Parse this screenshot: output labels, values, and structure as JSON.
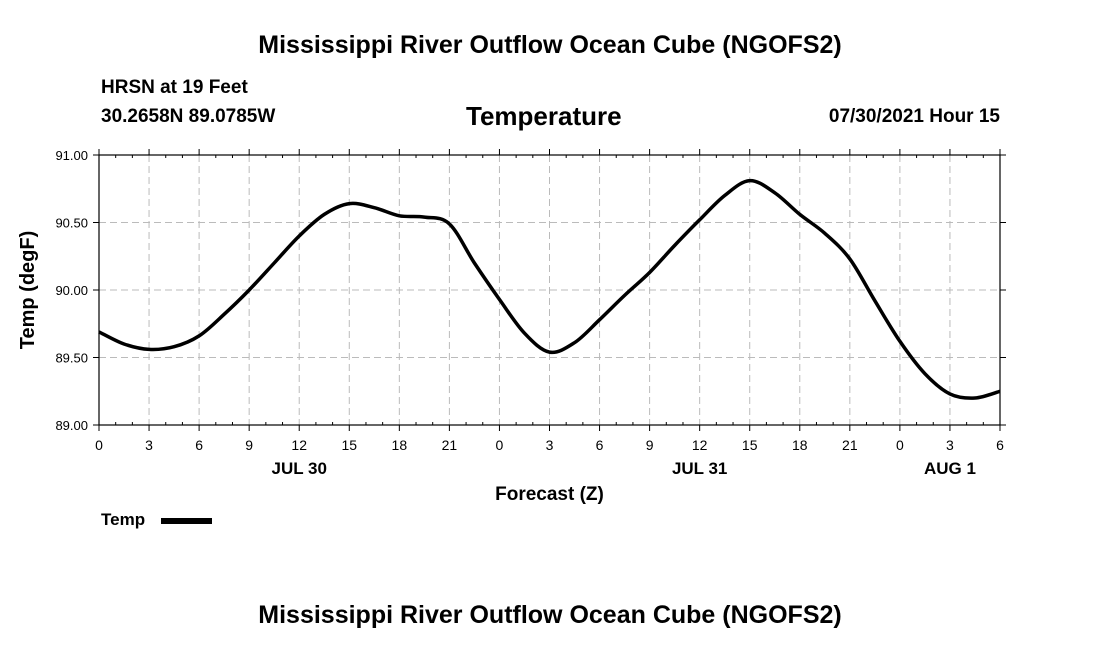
{
  "page": {
    "top_title": "Mississippi River Outflow Ocean Cube (NGOFS2)",
    "bottom_title": "Mississippi River Outflow Ocean Cube (NGOFS2)",
    "station": "HRSN at 19 Feet",
    "coords": "30.2658N  89.0785W",
    "date_label": "07/30/2021 Hour 15"
  },
  "chart_data": {
    "type": "line",
    "title": "Temperature",
    "xlabel": "Forecast (Z)",
    "ylabel": "Temp (degF)",
    "ylim": [
      89.0,
      91.0
    ],
    "xlim": [
      0,
      54
    ],
    "y_ticks": [
      "89.00",
      "89.50",
      "90.00",
      "90.50",
      "91.00"
    ],
    "x_ticks": [
      "0",
      "3",
      "6",
      "9",
      "12",
      "15",
      "18",
      "21",
      "0",
      "3",
      "6",
      "9",
      "12",
      "15",
      "18",
      "21",
      "0",
      "3",
      "6"
    ],
    "date_labels": [
      {
        "label": "JUL 30",
        "hour": 12
      },
      {
        "label": "JUL 31",
        "hour": 36
      },
      {
        "label": "AUG 1",
        "hour": 51
      }
    ],
    "grid": true,
    "legend_position": "bottom-left",
    "series": [
      {
        "name": "Temp",
        "color": "#000000",
        "x": [
          0,
          1.5,
          3,
          4.5,
          6,
          7.5,
          9,
          10.5,
          12,
          13.5,
          15,
          16.5,
          18,
          19.5,
          21,
          22.5,
          24,
          25.5,
          27,
          28.5,
          30,
          31.5,
          33,
          34.5,
          36,
          37.5,
          39,
          40.5,
          42,
          43.5,
          45,
          46.5,
          48,
          49.5,
          51,
          52.5,
          54
        ],
        "values": [
          89.69,
          89.6,
          89.56,
          89.58,
          89.66,
          89.82,
          90.0,
          90.2,
          90.4,
          90.56,
          90.64,
          90.61,
          90.55,
          90.54,
          90.49,
          90.2,
          89.93,
          89.68,
          89.54,
          89.61,
          89.78,
          89.96,
          90.13,
          90.33,
          90.52,
          90.7,
          90.81,
          90.72,
          90.56,
          90.42,
          90.23,
          89.92,
          89.62,
          89.38,
          89.23,
          89.2,
          89.25
        ]
      }
    ]
  }
}
